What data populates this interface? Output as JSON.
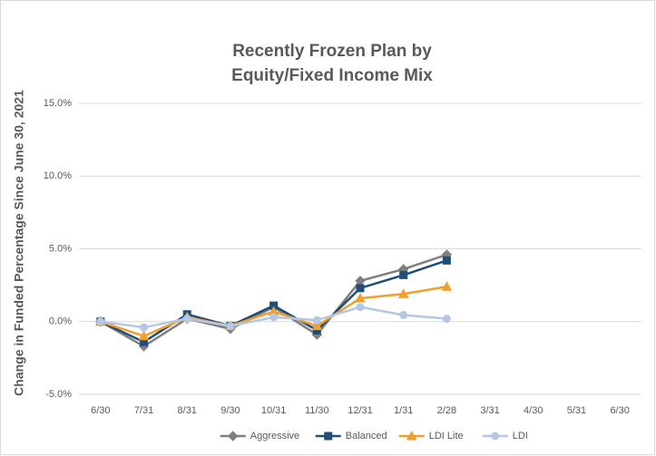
{
  "chart_data": {
    "type": "line",
    "title": [
      "Recently Frozen Plan by",
      "Equity/Fixed Income Mix"
    ],
    "y_label": "Change in Funded Percentage Since June 30, 2021",
    "categories": [
      "6/30",
      "7/31",
      "8/31",
      "9/30",
      "10/31",
      "11/30",
      "12/31",
      "1/31",
      "2/28",
      "3/31",
      "4/30",
      "5/31",
      "6/30"
    ],
    "series": [
      {
        "name": "Aggressive",
        "color": "#7f7f7f",
        "marker": "diamond",
        "values": [
          0,
          -1.7,
          0.2,
          -0.5,
          1.0,
          -0.9,
          2.8,
          3.6,
          4.6,
          null,
          null,
          null,
          null
        ]
      },
      {
        "name": "Balanced",
        "color": "#1f4e79",
        "marker": "square",
        "values": [
          0,
          -1.4,
          0.5,
          -0.3,
          1.1,
          -0.6,
          2.3,
          3.2,
          4.2,
          null,
          null,
          null,
          null
        ]
      },
      {
        "name": "LDI Lite",
        "color": "#f0a030",
        "marker": "triangle",
        "values": [
          0,
          -1.0,
          0.3,
          -0.3,
          0.7,
          -0.3,
          1.6,
          1.9,
          2.4,
          null,
          null,
          null,
          null
        ]
      },
      {
        "name": "LDI",
        "color": "#b4c7e7",
        "marker": "circle",
        "values": [
          0,
          -0.4,
          0.2,
          -0.3,
          0.3,
          0.1,
          1.0,
          0.45,
          0.2,
          null,
          null,
          null,
          null
        ]
      }
    ],
    "ylim": [
      -5,
      15
    ],
    "yticks": [
      {
        "value": -5,
        "label": "-5.0%"
      },
      {
        "value": 0,
        "label": "0.0%"
      },
      {
        "value": 5,
        "label": "5.0%"
      },
      {
        "value": 10,
        "label": "10.0%"
      },
      {
        "value": 15,
        "label": "15.0%"
      }
    ],
    "grid": true,
    "legend": "bottom"
  }
}
